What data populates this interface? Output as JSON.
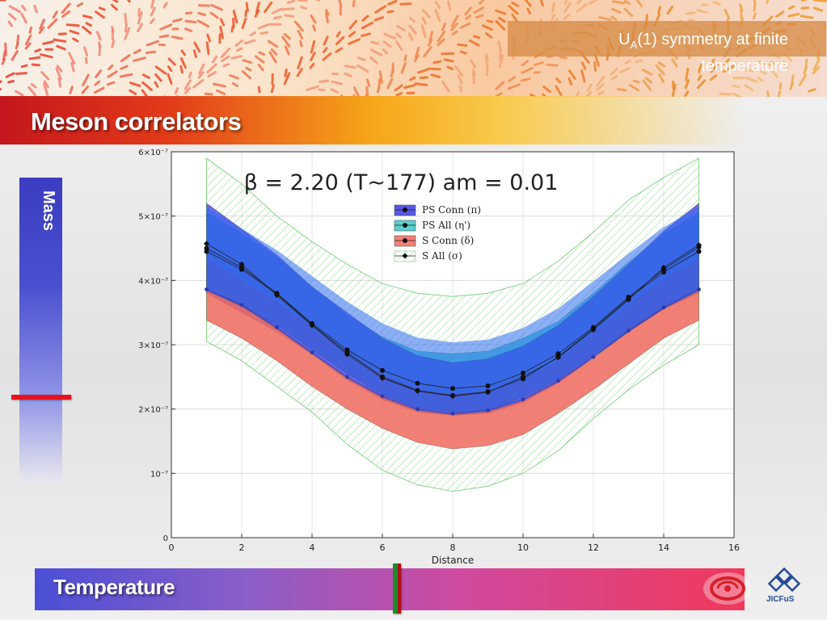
{
  "header": {
    "subtitle_pre": "U",
    "subtitle_sub": "A",
    "subtitle_post": "(1) symmetry at finite",
    "subtitle_line2": "temperature",
    "title": "Meson correlators"
  },
  "side": {
    "mass_label": "Mass",
    "mass_color": "#e8121c"
  },
  "footer": {
    "temperature_label": "Temperature",
    "logo_text": "JICFuS"
  },
  "chart_data": {
    "type": "line",
    "title": "β = 2.20 (T~177) am = 0.01",
    "xlabel": "Distance",
    "ylabel": "",
    "xlim": [
      0,
      16
    ],
    "ylim": [
      0,
      6e-07
    ],
    "x_ticks": [
      0,
      2,
      4,
      6,
      8,
      10,
      12,
      14,
      16
    ],
    "y_ticks": [
      {
        "value": 0,
        "label": "0"
      },
      {
        "value": 1e-07,
        "label": "10⁻⁷"
      },
      {
        "value": 2e-07,
        "label": "2×10⁻⁷"
      },
      {
        "value": 3e-07,
        "label": "3×10⁻⁷"
      },
      {
        "value": 4e-07,
        "label": "4×10⁻⁷"
      },
      {
        "value": 5e-07,
        "label": "5×10⁻⁷"
      },
      {
        "value": 6e-07,
        "label": "6×10⁻⁷"
      }
    ],
    "grid": true,
    "legend_position": "top-center",
    "x": [
      1,
      2,
      3,
      4,
      5,
      6,
      7,
      8,
      9,
      10,
      11,
      12,
      13,
      14,
      15
    ],
    "series": [
      {
        "name": "PS Conn (π)",
        "color": "#3b3bd9",
        "marker": "circle",
        "values": [
          4.5e-07,
          4.2e-07,
          3.8e-07,
          3.33e-07,
          2.92e-07,
          2.6e-07,
          2.4e-07,
          2.32e-07,
          2.36e-07,
          2.56e-07,
          2.86e-07,
          3.27e-07,
          3.74e-07,
          4.17e-07,
          4.52e-07
        ],
        "band_upper": [
          5.2e-07,
          4.8e-07,
          4.4e-07,
          3.9e-07,
          3.5e-07,
          3.1e-07,
          2.83e-07,
          2.72e-07,
          2.78e-07,
          2.98e-07,
          3.3e-07,
          3.75e-07,
          4.25e-07,
          4.77e-07,
          5.2e-07
        ],
        "band_lower": [
          3.8e-07,
          3.5e-07,
          3.2e-07,
          2.85e-07,
          2.45e-07,
          2.15e-07,
          1.95e-07,
          1.9e-07,
          1.93e-07,
          2.1e-07,
          2.4e-07,
          2.8e-07,
          3.2e-07,
          3.55e-07,
          3.8e-07
        ]
      },
      {
        "name": "PS All (η')",
        "color": "#3ec8c8",
        "marker": "circle",
        "values": [
          4.45e-07,
          4.17e-07,
          3.79e-07,
          3.31e-07,
          2.88e-07,
          2.5e-07,
          2.29e-07,
          2.21e-07,
          2.27e-07,
          2.47e-07,
          2.81e-07,
          3.25e-07,
          3.72e-07,
          4.13e-07,
          4.45e-07
        ],
        "band_upper": [
          5.05e-07,
          4.73e-07,
          4.36e-07,
          3.9e-07,
          3.46e-07,
          3.12e-07,
          2.9e-07,
          2.86e-07,
          2.9e-07,
          3.1e-07,
          3.36e-07,
          3.8e-07,
          4.28e-07,
          4.72e-07,
          5.05e-07
        ],
        "band_lower": [
          3.86e-07,
          3.6e-07,
          3.3e-07,
          2.92e-07,
          2.55e-07,
          2.22e-07,
          2.02e-07,
          1.95e-07,
          1.98e-07,
          2.18e-07,
          2.46e-07,
          2.83e-07,
          3.22e-07,
          3.57e-07,
          3.86e-07
        ]
      },
      {
        "name": "S Conn (δ)",
        "color": "#f07060",
        "marker": "circle",
        "values": [
          3.86e-07,
          3.62e-07,
          3.27e-07,
          2.88e-07,
          2.5e-07,
          2.2e-07,
          2e-07,
          1.93e-07,
          1.98e-07,
          2.15e-07,
          2.44e-07,
          2.81e-07,
          3.22e-07,
          3.58e-07,
          3.86e-07
        ],
        "band_upper": [
          3.84e-07,
          3.6e-07,
          3.25e-07,
          2.86e-07,
          2.48e-07,
          2.18e-07,
          1.98e-07,
          1.91e-07,
          1.96e-07,
          2.13e-07,
          2.42e-07,
          2.79e-07,
          3.2e-07,
          3.56e-07,
          3.84e-07
        ],
        "band_lower": [
          3.38e-07,
          3.1e-07,
          2.75e-07,
          2.35e-07,
          2e-07,
          1.7e-07,
          1.48e-07,
          1.38e-07,
          1.43e-07,
          1.6e-07,
          1.93e-07,
          2.3e-07,
          2.7e-07,
          3.1e-07,
          3.38e-07
        ]
      },
      {
        "name": "S All (σ)",
        "color": "#5fbf5f",
        "marker": "diamond",
        "values": [
          4.57e-07,
          4.25e-07,
          3.77e-07,
          3.3e-07,
          2.85e-07,
          2.48e-07,
          2.28e-07,
          2.2e-07,
          2.26e-07,
          2.5e-07,
          2.8e-07,
          3.23e-07,
          3.7e-07,
          4.2e-07,
          4.55e-07
        ],
        "band_upper": [
          5.9e-07,
          5.5e-07,
          5e-07,
          4.6e-07,
          4.25e-07,
          3.95e-07,
          3.8e-07,
          3.75e-07,
          3.8e-07,
          3.95e-07,
          4.3e-07,
          4.75e-07,
          5.25e-07,
          5.6e-07,
          5.9e-07
        ],
        "band_lower": [
          3.05e-07,
          2.75e-07,
          2.35e-07,
          1.95e-07,
          1.45e-07,
          1.05e-07,
          8.2e-08,
          7.2e-08,
          8e-08,
          1e-07,
          1.35e-07,
          1.85e-07,
          2.3e-07,
          2.68e-07,
          3e-07
        ]
      }
    ]
  }
}
